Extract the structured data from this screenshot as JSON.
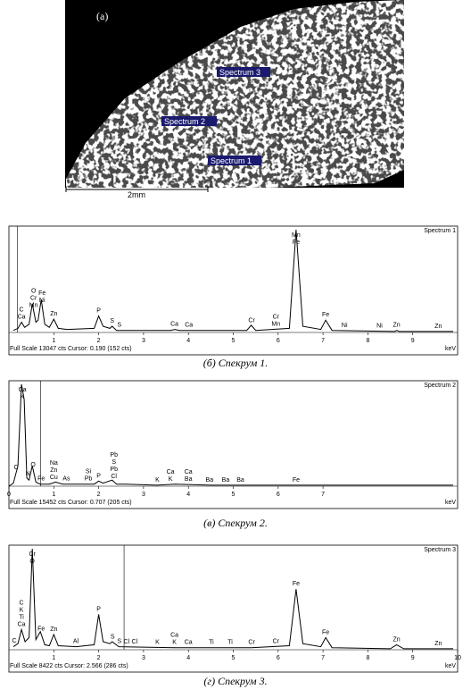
{
  "figure": {
    "panel_label": "(a)",
    "scale_bar": "2mm",
    "spectrum_labels": [
      "Spectrum 3",
      "Spectrum 2",
      "Spectrum 1"
    ]
  },
  "chart_data": [
    {
      "type": "line",
      "name": "Spectrum 1",
      "caption": "(б) Спекрум 1.",
      "x_unit": "keV",
      "footer": "Full Scale 13047 cts Cursor: 0.190  (152 cts)",
      "cursor": 0.19,
      "color": "#000000",
      "xlim": [
        0,
        10
      ],
      "xticks": [
        1,
        2,
        3,
        4,
        5,
        6,
        7,
        8,
        9
      ],
      "ylim": [
        0,
        100
      ],
      "x": [
        0.1,
        0.2,
        0.28,
        0.35,
        0.45,
        0.52,
        0.6,
        0.65,
        0.72,
        0.8,
        0.9,
        1.0,
        1.1,
        1.3,
        1.9,
        2.0,
        2.1,
        2.25,
        2.3,
        2.4,
        3.6,
        3.7,
        3.8,
        5.3,
        5.4,
        5.5,
        6.25,
        6.4,
        6.55,
        6.95,
        7.06,
        7.2,
        8.6,
        8.64,
        8.7,
        9.9
      ],
      "values": [
        2,
        4,
        10,
        5,
        8,
        28,
        10,
        12,
        32,
        8,
        5,
        13,
        4,
        3,
        4,
        16,
        6,
        4,
        6,
        2,
        2,
        3,
        2,
        2,
        7,
        2,
        4,
        100,
        6,
        3,
        12,
        2,
        1,
        2,
        1,
        1
      ],
      "annotations": [
        {
          "x": 0.28,
          "labels": [
            "C",
            "Ca"
          ]
        },
        {
          "x": 0.55,
          "labels": [
            "O",
            "Cr",
            "Mn"
          ]
        },
        {
          "x": 0.74,
          "labels": [
            "Fe",
            "Ni"
          ]
        },
        {
          "x": 1.0,
          "labels": [
            "Zn"
          ]
        },
        {
          "x": 2.0,
          "labels": [
            "P"
          ]
        },
        {
          "x": 2.3,
          "labels": [
            "S"
          ]
        },
        {
          "x": 2.46,
          "labels": [
            "S"
          ]
        },
        {
          "x": 3.69,
          "labels": [
            "Ca"
          ]
        },
        {
          "x": 4.01,
          "labels": [
            "Ca"
          ]
        },
        {
          "x": 5.41,
          "labels": [
            "Cr"
          ]
        },
        {
          "x": 5.95,
          "labels": [
            "Cr",
            "Mn"
          ]
        },
        {
          "x": 6.4,
          "labels": [
            "Mn",
            "Fe"
          ]
        },
        {
          "x": 7.06,
          "labels": [
            "Fe"
          ]
        },
        {
          "x": 7.48,
          "labels": [
            "Ni"
          ]
        },
        {
          "x": 8.26,
          "labels": [
            "Ni"
          ]
        },
        {
          "x": 8.64,
          "labels": [
            "Zn"
          ]
        },
        {
          "x": 9.57,
          "labels": [
            "Zn"
          ]
        }
      ]
    },
    {
      "type": "line",
      "name": "Spectrum 2",
      "caption": "(в) Спекрум 2.",
      "x_unit": "keV",
      "footer": "Full Scale 15452 cts Cursor: 0.707  (205 cts)",
      "cursor": 0.707,
      "color": "#000000",
      "xlim": [
        0,
        10
      ],
      "xticks": [
        0,
        1,
        2,
        3,
        4,
        5,
        6,
        7
      ],
      "ylim": [
        0,
        100
      ],
      "x": [
        0,
        0.1,
        0.2,
        0.28,
        0.34,
        0.4,
        0.45,
        0.52,
        0.6,
        0.7,
        0.9,
        1.04,
        1.2,
        1.9,
        2.0,
        2.1,
        2.3,
        2.4,
        2.6,
        3.3,
        3.7,
        4.5,
        6.4,
        9.9
      ],
      "values": [
        0,
        3,
        20,
        100,
        85,
        8,
        6,
        20,
        4,
        2,
        2,
        4,
        2,
        2,
        5,
        3,
        6,
        2,
        2,
        1,
        2,
        1,
        1,
        1
      ],
      "annotations": [
        {
          "x": 0.3,
          "labels": [
            "Ca",
            "K"
          ]
        },
        {
          "x": 0.16,
          "labels": [
            "C"
          ]
        },
        {
          "x": 0.42,
          "labels": [
            "N"
          ]
        },
        {
          "x": 0.54,
          "labels": [
            "O"
          ]
        },
        {
          "x": 0.72,
          "labels": [
            "Fe"
          ]
        },
        {
          "x": 1.0,
          "labels": [
            "Na",
            "Zn",
            "Cu"
          ]
        },
        {
          "x": 1.28,
          "labels": [
            "As"
          ]
        },
        {
          "x": 1.77,
          "labels": [
            "Si",
            "Pb"
          ]
        },
        {
          "x": 2.0,
          "labels": [
            "P"
          ]
        },
        {
          "x": 2.34,
          "labels": [
            "Pb",
            "S",
            "Pb",
            "Cl"
          ]
        },
        {
          "x": 3.31,
          "labels": [
            "K"
          ]
        },
        {
          "x": 3.6,
          "labels": [
            "Ca",
            "K"
          ]
        },
        {
          "x": 4.0,
          "labels": [
            "Ca",
            "Ba"
          ]
        },
        {
          "x": 4.47,
          "labels": [
            "Ba"
          ]
        },
        {
          "x": 4.83,
          "labels": [
            "Ba"
          ]
        },
        {
          "x": 5.16,
          "labels": [
            "Ba"
          ]
        },
        {
          "x": 6.4,
          "labels": [
            "Fe"
          ]
        }
      ]
    },
    {
      "type": "line",
      "name": "Spectrum 3",
      "caption": "(г) Спекрум 3.",
      "x_unit": "keV",
      "footer": "Full Scale 8422 cts Cursor: 2.566  (286 cts)",
      "cursor": 2.566,
      "color": "#000000",
      "xlim": [
        0,
        10
      ],
      "xticks": [
        1,
        2,
        3,
        4,
        5,
        6,
        7,
        8,
        9,
        10
      ],
      "ylim": [
        0,
        100
      ],
      "x": [
        0.1,
        0.2,
        0.28,
        0.36,
        0.45,
        0.52,
        0.6,
        0.7,
        0.8,
        0.9,
        1.0,
        1.1,
        1.5,
        1.9,
        2.0,
        2.1,
        2.25,
        2.3,
        2.45,
        3.7,
        5.4,
        6.25,
        6.4,
        6.55,
        6.95,
        7.06,
        7.2,
        8.5,
        8.64,
        8.8,
        9.9
      ],
      "values": [
        3,
        6,
        20,
        8,
        12,
        100,
        10,
        18,
        5,
        4,
        15,
        4,
        3,
        5,
        35,
        8,
        6,
        8,
        3,
        2,
        2,
        4,
        60,
        6,
        3,
        12,
        2,
        1,
        5,
        1,
        1
      ],
      "annotations": [
        {
          "x": 0.28,
          "labels": [
            "C",
            "K",
            "Ti",
            "Ca"
          ]
        },
        {
          "x": 0.12,
          "labels": [
            "C"
          ]
        },
        {
          "x": 0.52,
          "labels": [
            "Cr",
            "O"
          ]
        },
        {
          "x": 0.72,
          "labels": [
            "Fe"
          ]
        },
        {
          "x": 1.0,
          "labels": [
            "Zn"
          ]
        },
        {
          "x": 1.49,
          "labels": [
            "Al"
          ]
        },
        {
          "x": 2.0,
          "labels": [
            "P"
          ]
        },
        {
          "x": 2.31,
          "labels": [
            "S"
          ]
        },
        {
          "x": 2.62,
          "labels": [
            "Cl"
          ]
        },
        {
          "x": 2.46,
          "labels": [
            "S"
          ]
        },
        {
          "x": 2.8,
          "labels": [
            "Cl"
          ]
        },
        {
          "x": 3.31,
          "labels": [
            "K"
          ]
        },
        {
          "x": 3.69,
          "labels": [
            "Ca",
            "K"
          ]
        },
        {
          "x": 4.0,
          "labels": [
            "Ca"
          ]
        },
        {
          "x": 4.51,
          "labels": [
            "Ti"
          ]
        },
        {
          "x": 4.93,
          "labels": [
            "Ti"
          ]
        },
        {
          "x": 5.41,
          "labels": [
            "Cr"
          ]
        },
        {
          "x": 5.95,
          "labels": [
            "Cr"
          ]
        },
        {
          "x": 6.4,
          "labels": [
            "Fe"
          ]
        },
        {
          "x": 7.06,
          "labels": [
            "Fe"
          ]
        },
        {
          "x": 8.64,
          "labels": [
            "Zn"
          ]
        },
        {
          "x": 9.57,
          "labels": [
            "Zn"
          ]
        }
      ]
    }
  ]
}
